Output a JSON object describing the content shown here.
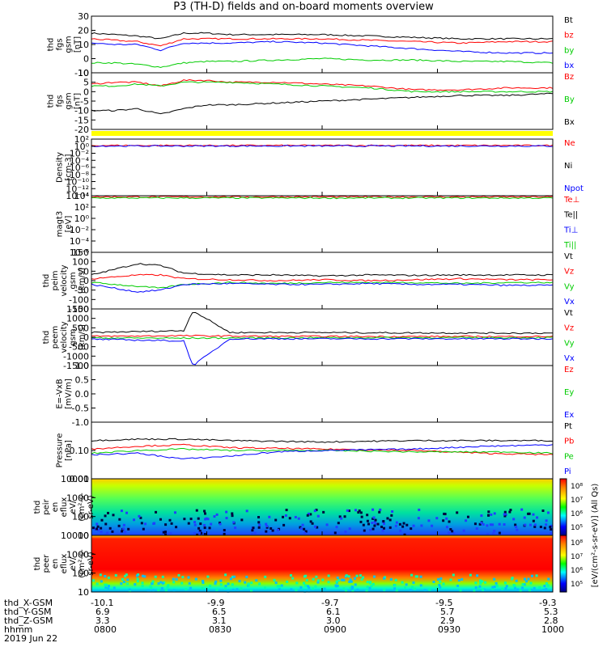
{
  "title": "P3 (TH-D) fields and on-board moments overview",
  "colors": {
    "black": "#000000",
    "red": "#ff0000",
    "green": "#00cc00",
    "blue": "#0000ff",
    "yellow": "#ffff00"
  },
  "chart_data": [
    {
      "type": "line",
      "id": "fgs",
      "ylabel": [
        "thd",
        "fgs",
        "gsm",
        "[nT]"
      ],
      "ylim": [
        -10,
        30
      ],
      "ticks": [
        "30",
        "20",
        "10",
        "0",
        "-10"
      ],
      "tick_values": [
        30,
        20,
        10,
        0,
        -10
      ],
      "legend": [
        "Bt",
        "bz",
        "by",
        "bx"
      ],
      "legend_colors": [
        "#000000",
        "#ff0000",
        "#00cc00",
        "#0000ff"
      ],
      "series": [
        {
          "name": "Bt",
          "color": "#000000",
          "x": [
            0,
            0.05,
            0.1,
            0.15,
            0.2,
            0.25,
            0.3,
            0.4,
            0.5,
            0.6,
            0.7,
            0.8,
            0.9,
            1.0
          ],
          "y": [
            18,
            17,
            16,
            14,
            18,
            18,
            17,
            17,
            17,
            16,
            15,
            14,
            14,
            14
          ]
        },
        {
          "name": "bz",
          "color": "#ff0000",
          "x": [
            0,
            0.05,
            0.1,
            0.15,
            0.2,
            0.25,
            0.3,
            0.4,
            0.5,
            0.6,
            0.7,
            0.8,
            0.9,
            1.0
          ],
          "y": [
            14,
            13,
            12,
            9,
            14,
            14,
            14,
            14,
            14,
            13,
            12,
            11,
            12,
            12
          ]
        },
        {
          "name": "by",
          "color": "#00cc00",
          "x": [
            0,
            0.05,
            0.1,
            0.15,
            0.2,
            0.25,
            0.3,
            0.4,
            0.5,
            0.6,
            0.7,
            0.8,
            0.9,
            1.0
          ],
          "y": [
            -3,
            -3,
            -4,
            -6,
            -3,
            -2,
            -2,
            -1,
            0,
            -1,
            -1,
            -2,
            -2,
            -3
          ]
        },
        {
          "name": "bx",
          "color": "#0000ff",
          "x": [
            0,
            0.05,
            0.1,
            0.15,
            0.2,
            0.25,
            0.3,
            0.4,
            0.5,
            0.6,
            0.7,
            0.8,
            0.9,
            1.0
          ],
          "y": [
            11,
            10,
            10,
            6,
            11,
            11,
            11,
            12,
            11,
            9,
            7,
            5,
            4,
            4
          ]
        }
      ]
    },
    {
      "type": "line",
      "id": "fgs2",
      "ylabel": [
        "thd",
        "fgs",
        "gsm",
        "[nT]"
      ],
      "ylim": [
        -20,
        10
      ],
      "ticks": [
        "10",
        "5",
        "0",
        "-5",
        "-10",
        "-15",
        "-20"
      ],
      "tick_values": [
        10,
        5,
        0,
        -5,
        -10,
        -15,
        -20
      ],
      "legend": [
        "Bz",
        "By",
        "Bx"
      ],
      "legend_colors": [
        "#ff0000",
        "#00cc00",
        "#000000"
      ],
      "series": [
        {
          "name": "Bz",
          "color": "#ff0000",
          "x": [
            0,
            0.05,
            0.1,
            0.15,
            0.2,
            0.25,
            0.3,
            0.4,
            0.5,
            0.6,
            0.7,
            0.8,
            0.9,
            1.0
          ],
          "y": [
            4,
            5,
            5,
            3,
            6,
            6,
            5,
            5,
            4,
            3,
            1,
            1,
            2,
            2
          ]
        },
        {
          "name": "By",
          "color": "#00cc00",
          "x": [
            0,
            0.05,
            0.1,
            0.15,
            0.2,
            0.25,
            0.3,
            0.4,
            0.5,
            0.6,
            0.7,
            0.8,
            0.9,
            1.0
          ],
          "y": [
            3,
            3,
            4,
            3,
            5,
            5,
            5,
            4,
            3,
            2,
            0,
            0,
            0,
            0
          ]
        },
        {
          "name": "Bx",
          "color": "#000000",
          "x": [
            0,
            0.05,
            0.1,
            0.15,
            0.2,
            0.25,
            0.3,
            0.4,
            0.5,
            0.6,
            0.7,
            0.8,
            0.9,
            1.0
          ],
          "y": [
            -10,
            -10,
            -9,
            -12,
            -9,
            -7,
            -7,
            -6,
            -5,
            -4,
            -3,
            -2,
            -2,
            -1
          ]
        }
      ]
    },
    {
      "type": "line",
      "id": "density",
      "ylabel": [
        "Density",
        "[cm-3]"
      ],
      "ylim": [
        -14,
        2
      ],
      "ticks": [
        "10²",
        "10⁰",
        "10⁻²",
        "10⁻⁴",
        "10⁻⁶",
        "10⁻⁸",
        "10⁻¹⁰",
        "10⁻¹²",
        "10⁻¹⁴"
      ],
      "tick_values": [
        2,
        0,
        -2,
        -4,
        -6,
        -8,
        -10,
        -12,
        -14
      ],
      "legend": [
        "Ne",
        "Ni",
        "Npot"
      ],
      "legend_colors": [
        "#ff0000",
        "#000000",
        "#0000ff"
      ],
      "series": [
        {
          "name": "Ne",
          "color": "#ff0000",
          "x": [
            0,
            1
          ],
          "y": [
            0.2,
            0.2
          ]
        },
        {
          "name": "Npot",
          "color": "#0000ff",
          "x": [
            0,
            1
          ],
          "y": [
            0.05,
            0.05
          ]
        }
      ]
    },
    {
      "type": "line",
      "id": "temperature",
      "ylabel": [
        "magt3",
        "[eV]"
      ],
      "ylim": [
        -6,
        4
      ],
      "ticks": [
        "10⁴",
        "10²",
        "10⁰",
        "10⁻²",
        "10⁻⁴",
        "10⁻⁶"
      ],
      "tick_values": [
        4,
        2,
        0,
        -2,
        -4,
        -6
      ],
      "legend": [
        "Te⊥",
        "Te||",
        "Ti⊥",
        "Ti||"
      ],
      "legend_colors": [
        "#ff0000",
        "#000000",
        "#0000ff",
        "#00cc00"
      ],
      "series": [
        {
          "name": "Te⊥",
          "color": "#ff0000",
          "x": [
            0,
            1
          ],
          "y": [
            3.8,
            3.8
          ]
        },
        {
          "name": "Ti||",
          "color": "#00cc00",
          "x": [
            0,
            1
          ],
          "y": [
            3.6,
            3.6
          ]
        }
      ]
    },
    {
      "type": "line",
      "id": "peim",
      "ylabel": [
        "thd",
        "peim",
        "velocity",
        "gsm",
        "[km/s]"
      ],
      "ylim": [
        -150,
        150
      ],
      "ticks": [
        "150",
        "100",
        "50",
        "0",
        "-50",
        "-100",
        "-150"
      ],
      "tick_values": [
        150,
        100,
        50,
        0,
        -50,
        -100,
        -150
      ],
      "legend": [
        "Vt",
        "Vz",
        "Vy",
        "Vx"
      ],
      "legend_colors": [
        "#000000",
        "#ff0000",
        "#00cc00",
        "#0000ff"
      ],
      "series": [
        {
          "name": "Vt",
          "color": "#000000",
          "x": [
            0,
            0.05,
            0.1,
            0.15,
            0.2,
            0.3,
            0.4,
            0.5,
            0.6,
            0.7,
            0.8,
            0.9,
            1.0
          ],
          "y": [
            30,
            60,
            90,
            80,
            40,
            30,
            30,
            25,
            30,
            28,
            30,
            30,
            30
          ]
        },
        {
          "name": "Vz",
          "color": "#ff0000",
          "x": [
            0,
            0.05,
            0.1,
            0.15,
            0.2,
            0.3,
            0.4,
            0.5,
            0.6,
            0.7,
            0.8,
            0.9,
            1.0
          ],
          "y": [
            10,
            20,
            30,
            30,
            10,
            5,
            0,
            5,
            0,
            5,
            10,
            5,
            5
          ]
        },
        {
          "name": "Vy",
          "color": "#00cc00",
          "x": [
            0,
            0.05,
            0.1,
            0.15,
            0.2,
            0.3,
            0.4,
            0.5,
            0.6,
            0.7,
            0.8,
            0.9,
            1.0
          ],
          "y": [
            -10,
            -20,
            -30,
            -40,
            -20,
            -10,
            -15,
            -10,
            -10,
            -10,
            -15,
            -10,
            -10
          ]
        },
        {
          "name": "Vx",
          "color": "#0000ff",
          "x": [
            0,
            0.05,
            0.1,
            0.15,
            0.2,
            0.3,
            0.4,
            0.5,
            0.6,
            0.7,
            0.8,
            0.9,
            1.0
          ],
          "y": [
            -20,
            -40,
            -60,
            -50,
            -20,
            -15,
            -20,
            -20,
            -15,
            -20,
            -20,
            -25,
            -25
          ]
        }
      ]
    },
    {
      "type": "line",
      "id": "peem",
      "ylabel": [
        "thd",
        "peem",
        "velocity",
        "gsm",
        "[km/s]"
      ],
      "ylim": [
        -1500,
        1500
      ],
      "ticks": [
        "1500",
        "1000",
        "500",
        "0",
        "-500",
        "-1000",
        "-1500"
      ],
      "tick_values": [
        1500,
        1000,
        500,
        0,
        -500,
        -1000,
        -1500
      ],
      "legend": [
        "Vt",
        "Vz",
        "Vy",
        "Vx"
      ],
      "legend_colors": [
        "#000000",
        "#ff0000",
        "#00cc00",
        "#0000ff"
      ],
      "series": [
        {
          "name": "Vt",
          "color": "#000000",
          "x": [
            0,
            0.1,
            0.2,
            0.22,
            0.3,
            0.5,
            0.7,
            0.9,
            1.0
          ],
          "y": [
            250,
            300,
            350,
            1400,
            250,
            250,
            230,
            220,
            220
          ]
        },
        {
          "name": "Vz",
          "color": "#ff0000",
          "x": [
            0,
            0.2,
            0.4,
            0.6,
            0.8,
            1.0
          ],
          "y": [
            50,
            80,
            50,
            40,
            40,
            40
          ]
        },
        {
          "name": "Vy",
          "color": "#00cc00",
          "x": [
            0,
            0.2,
            0.4,
            0.6,
            0.8,
            1.0
          ],
          "y": [
            -30,
            -50,
            -30,
            -20,
            -20,
            -20
          ]
        },
        {
          "name": "Vx",
          "color": "#0000ff",
          "x": [
            0,
            0.1,
            0.2,
            0.22,
            0.3,
            0.6,
            1.0
          ],
          "y": [
            -100,
            -150,
            -200,
            -1500,
            -80,
            -80,
            -80
          ]
        }
      ]
    },
    {
      "type": "line",
      "id": "efield",
      "ylabel": [
        "E=-VxB",
        "[mV/m]"
      ],
      "ylim": [
        -1,
        1
      ],
      "ticks": [
        "1.0",
        "0.5",
        "0.0",
        "-0.5",
        "-1.0"
      ],
      "tick_values": [
        1,
        0.5,
        0,
        -0.5,
        -1
      ],
      "legend": [
        "Ez",
        "Ey",
        "Ex"
      ],
      "legend_colors": [
        "#ff0000",
        "#00cc00",
        "#0000ff"
      ],
      "series": []
    },
    {
      "type": "line",
      "id": "pressure",
      "ylabel": [
        "Pressure",
        "[nPa]"
      ],
      "ylim": [
        -2,
        0
      ],
      "ticks": [
        "0.10",
        "0.01"
      ],
      "tick_values": [
        -1,
        -2
      ],
      "legend": [
        "Pt",
        "Pb",
        "Pe",
        "Pi"
      ],
      "legend_colors": [
        "#000000",
        "#ff0000",
        "#00cc00",
        "#0000ff"
      ],
      "series": [
        {
          "name": "Pt",
          "color": "#000000",
          "x": [
            0,
            0.1,
            0.2,
            0.3,
            0.5,
            0.7,
            0.9,
            1.0
          ],
          "y": [
            -0.65,
            -0.6,
            -0.6,
            -0.65,
            -0.7,
            -0.65,
            -0.65,
            -0.65
          ]
        },
        {
          "name": "Pb",
          "color": "#ff0000",
          "x": [
            0,
            0.1,
            0.2,
            0.3,
            0.5,
            0.7,
            0.85,
            1.0
          ],
          "y": [
            -0.95,
            -0.85,
            -0.8,
            -0.9,
            -0.95,
            -1.0,
            -1.1,
            -1.15
          ]
        },
        {
          "name": "Pe",
          "color": "#00cc00",
          "x": [
            0,
            0.1,
            0.2,
            0.3,
            0.5,
            0.7,
            0.9,
            1.0
          ],
          "y": [
            -1.1,
            -1.0,
            -0.95,
            -1.0,
            -1.0,
            -1.05,
            -1.05,
            -1.1
          ]
        },
        {
          "name": "Pi",
          "color": "#0000ff",
          "x": [
            0,
            0.1,
            0.2,
            0.3,
            0.4,
            0.5,
            0.7,
            0.85,
            1.0
          ],
          "y": [
            -1.15,
            -1.1,
            -1.3,
            -1.2,
            -1.05,
            -1.0,
            -0.95,
            -0.85,
            -0.8
          ]
        }
      ]
    },
    {
      "type": "heatmap",
      "id": "peir",
      "ylabel": [
        "thd",
        "peir",
        "en",
        "eflux",
        "eV/",
        "(cm²-s-",
        "sr-eV)"
      ],
      "ylim": [
        1,
        4
      ],
      "ticks": [
        "10000",
        "1000",
        "100",
        "10"
      ],
      "tick_values": [
        4,
        3,
        2,
        1
      ],
      "colorbar_ticks": [
        "10⁸",
        "10⁷",
        "10⁶",
        "10⁵"
      ]
    },
    {
      "type": "heatmap",
      "id": "peer",
      "ylabel": [
        "thd",
        "peer",
        "en",
        "eflux",
        "eV/",
        "(cm²-s-",
        "sr-eV)"
      ],
      "ylim": [
        1,
        4
      ],
      "ticks": [
        "10000",
        "1000",
        "100",
        "10"
      ],
      "tick_values": [
        4,
        3,
        2,
        1
      ],
      "colorbar_ticks": [
        "10⁸",
        "10⁷",
        "10⁶",
        "10⁵"
      ]
    }
  ],
  "colorbar_label": "[eV/(cm²-s-sr-eV)] (All Qs)",
  "footer": {
    "rows": [
      {
        "label": "thd_X-GSM",
        "values": [
          "-10.1",
          "-9.9",
          "-9.7",
          "-9.5",
          "-9.3"
        ]
      },
      {
        "label": "thd_Y-GSM",
        "values": [
          "6.9",
          "6.5",
          "6.1",
          "5.7",
          "5.3"
        ]
      },
      {
        "label": "thd_Z-GSM",
        "values": [
          "3.3",
          "3.1",
          "3.0",
          "2.9",
          "2.8"
        ]
      },
      {
        "label": "hhmm",
        "values": [
          "0800",
          "0830",
          "0900",
          "0930",
          "1000"
        ]
      }
    ],
    "date": "2019 Jun 22"
  }
}
